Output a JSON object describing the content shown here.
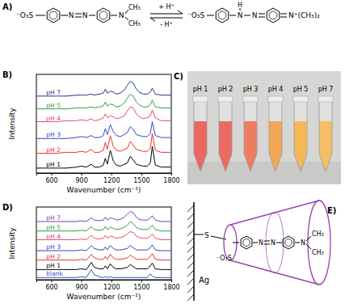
{
  "chart_data": [
    {
      "type": "line",
      "title": "B)",
      "xlabel": "Wavenumber (cm⁻¹)",
      "ylabel": "Intensity",
      "x": [
        450,
        550,
        650,
        750,
        850,
        900,
        950,
        1000,
        1030,
        1080,
        1120,
        1140,
        1160,
        1190,
        1220,
        1250,
        1290,
        1330,
        1360,
        1390,
        1420,
        1450,
        1480,
        1520,
        1560,
        1590,
        1610,
        1640,
        1700,
        1800
      ],
      "xlim": [
        450,
        1800
      ],
      "xticks": [
        600,
        900,
        1200,
        1500,
        1800
      ],
      "ylim": [
        0,
        100
      ],
      "tick_labels": "x",
      "grid": false,
      "series": [
        {
          "name": "pH 1",
          "color": "#000000",
          "values": [
            5,
            5,
            5,
            5,
            6,
            7,
            6,
            9,
            6,
            6,
            8,
            15,
            9,
            23,
            12,
            8,
            7,
            9,
            10,
            17,
            13,
            9,
            8,
            7,
            7,
            10,
            27,
            8,
            6,
            6
          ]
        },
        {
          "name": "pH 2",
          "color": "#e8312f",
          "values": [
            20,
            20,
            20,
            21,
            21,
            22,
            21,
            24,
            21,
            21,
            23,
            31,
            24,
            38,
            27,
            23,
            22,
            24,
            25,
            32,
            28,
            24,
            23,
            22,
            22,
            25,
            40,
            23,
            21,
            21
          ]
        },
        {
          "name": "pH 3",
          "color": "#3b3fc4",
          "values": [
            35,
            35,
            35,
            35,
            36,
            37,
            36,
            38,
            36,
            36,
            38,
            45,
            39,
            49,
            42,
            38,
            37,
            39,
            41,
            47,
            44,
            39,
            38,
            37,
            37,
            40,
            52,
            38,
            36,
            36
          ]
        },
        {
          "name": "pH 4",
          "color": "#e8457a",
          "values": [
            52,
            52,
            52,
            53,
            53,
            54,
            53,
            55,
            53,
            54,
            56,
            60,
            56,
            58,
            57,
            55,
            56,
            58,
            63,
            67,
            66,
            60,
            57,
            55,
            56,
            58,
            64,
            56,
            53,
            53
          ]
        },
        {
          "name": "pH 5",
          "color": "#2f9e44",
          "values": [
            65,
            65,
            65,
            65,
            66,
            66,
            66,
            67,
            66,
            67,
            68,
            72,
            68,
            70,
            69,
            67,
            68,
            71,
            76,
            80,
            78,
            72,
            69,
            67,
            67,
            69,
            74,
            67,
            66,
            66
          ]
        },
        {
          "name": "pH 7",
          "color": "#2b2f8f",
          "values": [
            78,
            78,
            78,
            78,
            79,
            79,
            79,
            80,
            79,
            80,
            81,
            85,
            81,
            83,
            82,
            80,
            81,
            84,
            89,
            93,
            91,
            85,
            82,
            80,
            80,
            82,
            86,
            80,
            79,
            79
          ]
        }
      ]
    },
    {
      "type": "line",
      "title": "D)",
      "xlabel": "Wavenumber (cm⁻¹)",
      "ylabel": "Intensity",
      "x": [
        450,
        550,
        650,
        750,
        850,
        900,
        950,
        1000,
        1030,
        1080,
        1120,
        1140,
        1160,
        1190,
        1220,
        1250,
        1290,
        1330,
        1360,
        1390,
        1420,
        1450,
        1480,
        1520,
        1560,
        1590,
        1610,
        1640,
        1700,
        1800
      ],
      "xlim": [
        450,
        1800
      ],
      "xticks": [
        600,
        900,
        1200,
        1500,
        1800
      ],
      "ylim": [
        0,
        100
      ],
      "tick_labels": "x",
      "grid": false,
      "series": [
        {
          "name": "blank",
          "color": "#2a52c8",
          "values": [
            3,
            3,
            3,
            3,
            3,
            4,
            3,
            14,
            7,
            4,
            3,
            4,
            3,
            4,
            3,
            3,
            3,
            3,
            3,
            3,
            3,
            3,
            3,
            3,
            3,
            8,
            5,
            3,
            3,
            3
          ]
        },
        {
          "name": "pH 1",
          "color": "#000000",
          "values": [
            14,
            14,
            14,
            14,
            14,
            15,
            14,
            24,
            17,
            15,
            15,
            19,
            15,
            22,
            17,
            15,
            15,
            16,
            17,
            21,
            18,
            15,
            15,
            15,
            15,
            19,
            23,
            15,
            14,
            14
          ]
        },
        {
          "name": "pH 2",
          "color": "#e8312f",
          "values": [
            27,
            27,
            27,
            27,
            27,
            28,
            27,
            35,
            30,
            28,
            28,
            32,
            28,
            35,
            30,
            28,
            28,
            29,
            30,
            34,
            31,
            28,
            28,
            28,
            28,
            32,
            36,
            28,
            27,
            27
          ]
        },
        {
          "name": "pH 3",
          "color": "#3b3fc4",
          "values": [
            40,
            40,
            40,
            40,
            40,
            41,
            40,
            47,
            43,
            41,
            41,
            45,
            41,
            47,
            43,
            41,
            41,
            42,
            43,
            47,
            44,
            41,
            41,
            41,
            41,
            44,
            48,
            41,
            40,
            40
          ]
        },
        {
          "name": "pH 4",
          "color": "#e8457a",
          "values": [
            55,
            55,
            55,
            55,
            55,
            56,
            55,
            61,
            57,
            56,
            57,
            61,
            57,
            60,
            59,
            57,
            58,
            60,
            63,
            66,
            65,
            60,
            58,
            57,
            57,
            60,
            63,
            57,
            55,
            55
          ]
        },
        {
          "name": "pH 5",
          "color": "#2f9e44",
          "values": [
            67,
            67,
            67,
            67,
            67,
            68,
            67,
            73,
            69,
            68,
            69,
            73,
            69,
            72,
            71,
            69,
            70,
            72,
            75,
            80,
            77,
            72,
            70,
            69,
            69,
            72,
            75,
            69,
            67,
            67
          ]
        },
        {
          "name": "pH 7",
          "color": "#7a3fb0",
          "values": [
            80,
            80,
            80,
            80,
            80,
            81,
            80,
            85,
            82,
            81,
            82,
            86,
            82,
            85,
            84,
            82,
            83,
            86,
            90,
            94,
            92,
            86,
            83,
            82,
            82,
            85,
            88,
            82,
            80,
            80
          ]
        }
      ]
    }
  ],
  "scheme": {
    "label": "A)",
    "left": {
      "sulfonate": "⁻O₃S",
      "azo": [
        "N",
        "N"
      ],
      "amine": "N",
      "methyls": [
        "CH₃",
        "CH₃"
      ]
    },
    "forward": "+ H⁺",
    "backward": "- H⁺",
    "right": {
      "sulfonate": "⁻O₃S",
      "azo": [
        "N",
        "N"
      ],
      "proton": "H",
      "amine": "N⁺(CH₃)₂"
    }
  },
  "photo": {
    "label": "C)",
    "vials": [
      {
        "label": "pH 1",
        "color": "#e4352a"
      },
      {
        "label": "pH 2",
        "color": "#e33a2b"
      },
      {
        "label": "pH 3",
        "color": "#e9502d"
      },
      {
        "label": "pH 4",
        "color": "#ef8a1e"
      },
      {
        "label": "pH 5",
        "color": "#f2a11f"
      },
      {
        "label": "pH 7",
        "color": "#f0a832"
      }
    ]
  },
  "diagram": {
    "label": "E)",
    "surface": "Ag",
    "thiol": "S",
    "guest": {
      "sulfonate": "⁻O₃S",
      "azo": [
        "N",
        "N"
      ],
      "amine": "N",
      "methyls": [
        "CH₃",
        "CH₃"
      ]
    }
  }
}
